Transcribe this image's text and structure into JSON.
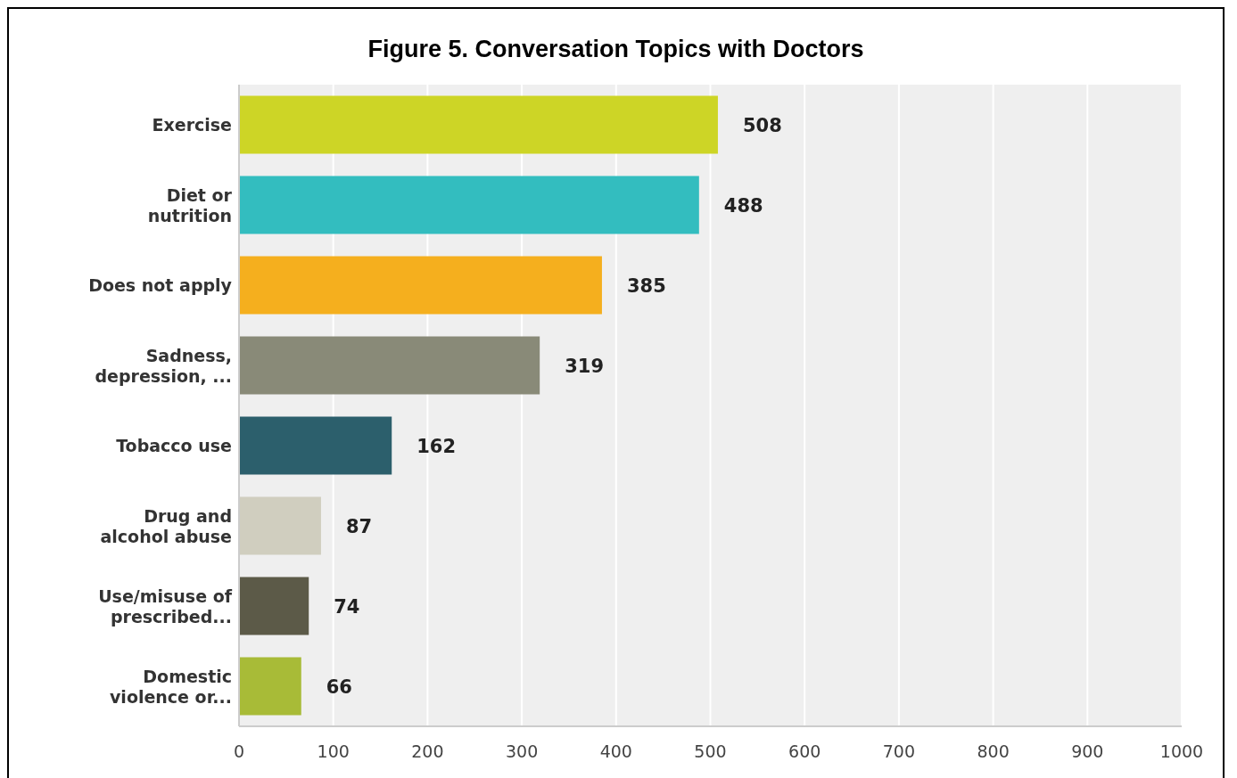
{
  "chart_data": {
    "type": "bar",
    "orientation": "horizontal",
    "title": "Figure 5. Conversation Topics with Doctors",
    "categories": [
      "Exercise",
      "Diet or nutrition",
      "Does not apply",
      "Sadness, depression, ...",
      "Tobacco use",
      "Drug and alcohol abuse",
      "Use/misuse of prescribed...",
      "Domestic violence or..."
    ],
    "values": [
      508,
      488,
      385,
      319,
      162,
      87,
      74,
      66
    ],
    "colors": [
      "#cdd526",
      "#33bdbf",
      "#f5af1e",
      "#898a78",
      "#2c5f6c",
      "#d0cebf",
      "#5c5a48",
      "#a8bb37"
    ],
    "xlim": [
      0,
      1000
    ],
    "xticks": [
      0,
      100,
      200,
      300,
      400,
      500,
      600,
      700,
      800,
      900,
      1000
    ],
    "grid": "x",
    "data_labels": true
  }
}
